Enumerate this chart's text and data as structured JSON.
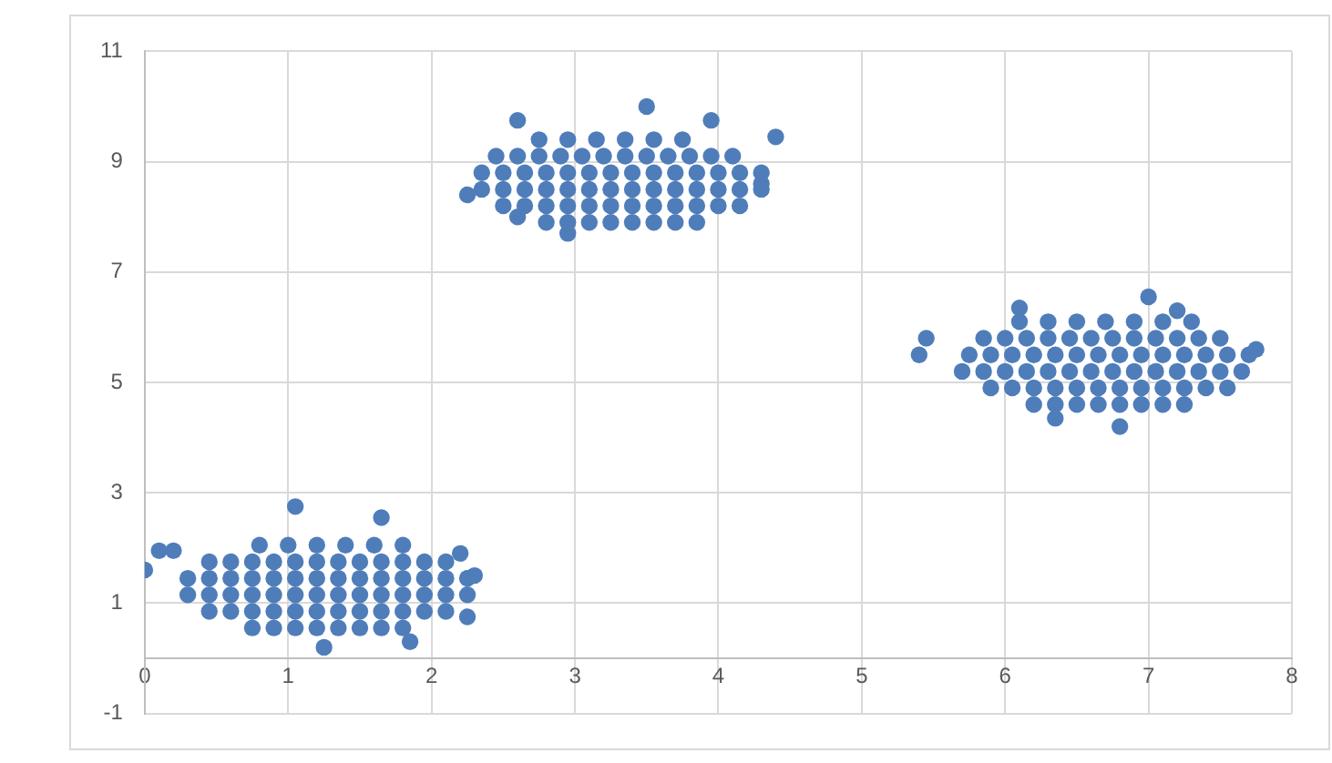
{
  "chart_data": {
    "type": "scatter",
    "marker": "circle",
    "grid": true,
    "legend": false,
    "xlim": [
      0,
      8
    ],
    "xticks": [
      0,
      1,
      2,
      3,
      4,
      5,
      6,
      7,
      8
    ],
    "ylim": [
      -1,
      11
    ],
    "yticks": [
      -1,
      1,
      3,
      5,
      7,
      9,
      11
    ],
    "series": [
      {
        "color": "#4f7dba",
        "x": [
          0.75,
          0.9,
          1.05,
          1.2,
          1.35,
          1.5,
          1.65,
          1.8,
          0.45,
          0.6,
          0.75,
          0.9,
          1.05,
          1.2,
          1.35,
          1.5,
          1.65,
          1.8,
          1.95,
          2.1,
          0.3,
          0.45,
          0.6,
          0.75,
          0.9,
          1.05,
          1.2,
          1.35,
          1.5,
          1.65,
          1.8,
          1.95,
          2.1,
          2.25,
          0.3,
          0.45,
          0.6,
          0.75,
          0.9,
          1.05,
          1.2,
          1.35,
          1.5,
          1.65,
          1.8,
          1.95,
          2.1,
          2.25,
          0.45,
          0.6,
          0.75,
          0.9,
          1.05,
          1.2,
          1.35,
          1.5,
          1.65,
          1.8,
          1.95,
          2.1,
          0.8,
          1.0,
          1.2,
          1.4,
          1.6,
          1.8,
          0,
          0.1,
          0.2,
          1.05,
          1.65,
          1.25,
          2.25,
          2.3,
          2.2,
          1.85
        ],
        "values": [
          0.55,
          0.55,
          0.55,
          0.55,
          0.55,
          0.55,
          0.55,
          0.55,
          0.85,
          0.85,
          0.85,
          0.85,
          0.85,
          0.85,
          0.85,
          0.85,
          0.85,
          0.85,
          0.85,
          0.85,
          1.15,
          1.15,
          1.15,
          1.15,
          1.15,
          1.15,
          1.15,
          1.15,
          1.15,
          1.15,
          1.15,
          1.15,
          1.15,
          1.15,
          1.45,
          1.45,
          1.45,
          1.45,
          1.45,
          1.45,
          1.45,
          1.45,
          1.45,
          1.45,
          1.45,
          1.45,
          1.45,
          1.45,
          1.75,
          1.75,
          1.75,
          1.75,
          1.75,
          1.75,
          1.75,
          1.75,
          1.75,
          1.75,
          1.75,
          1.75,
          2.05,
          2.05,
          2.05,
          2.05,
          2.05,
          2.05,
          1.6,
          1.95,
          1.95,
          2.75,
          2.55,
          0.2,
          0.75,
          1.5,
          1.9,
          0.3
        ]
      },
      {
        "color": "#4f7dba",
        "x": [
          2.8,
          2.95,
          3.1,
          3.25,
          3.4,
          3.55,
          3.7,
          3.85,
          2.5,
          2.65,
          2.8,
          2.95,
          3.1,
          3.25,
          3.4,
          3.55,
          3.7,
          3.85,
          4.0,
          4.15,
          2.35,
          2.5,
          2.65,
          2.8,
          2.95,
          3.1,
          3.25,
          3.4,
          3.55,
          3.7,
          3.85,
          4.0,
          4.15,
          4.3,
          2.35,
          2.5,
          2.65,
          2.8,
          2.95,
          3.1,
          3.25,
          3.4,
          3.55,
          3.7,
          3.85,
          4.0,
          4.15,
          4.3,
          2.45,
          2.6,
          2.75,
          2.9,
          3.05,
          3.2,
          3.35,
          3.5,
          3.65,
          3.8,
          3.95,
          4.1,
          2.75,
          2.95,
          3.15,
          3.35,
          3.55,
          3.75,
          2.25,
          2.6,
          3.5,
          4.4,
          4.3,
          2.6,
          3.95,
          2.95
        ],
        "values": [
          7.9,
          7.9,
          7.9,
          7.9,
          7.9,
          7.9,
          7.9,
          7.9,
          8.2,
          8.2,
          8.2,
          8.2,
          8.2,
          8.2,
          8.2,
          8.2,
          8.2,
          8.2,
          8.2,
          8.2,
          8.5,
          8.5,
          8.5,
          8.5,
          8.5,
          8.5,
          8.5,
          8.5,
          8.5,
          8.5,
          8.5,
          8.5,
          8.5,
          8.5,
          8.8,
          8.8,
          8.8,
          8.8,
          8.8,
          8.8,
          8.8,
          8.8,
          8.8,
          8.8,
          8.8,
          8.8,
          8.8,
          8.8,
          9.1,
          9.1,
          9.1,
          9.1,
          9.1,
          9.1,
          9.1,
          9.1,
          9.1,
          9.1,
          9.1,
          9.1,
          9.4,
          9.4,
          9.4,
          9.4,
          9.4,
          9.4,
          8.4,
          9.75,
          10.0,
          9.45,
          8.6,
          8.0,
          9.75,
          7.7
        ]
      },
      {
        "color": "#4f7dba",
        "x": [
          6.2,
          6.35,
          6.5,
          6.65,
          6.8,
          6.95,
          7.1,
          7.25,
          5.9,
          6.05,
          6.2,
          6.35,
          6.5,
          6.65,
          6.8,
          6.95,
          7.1,
          7.25,
          7.4,
          7.55,
          5.7,
          5.85,
          6.0,
          6.15,
          6.3,
          6.45,
          6.6,
          6.75,
          6.9,
          7.05,
          7.2,
          7.35,
          7.5,
          7.65,
          5.75,
          5.9,
          6.05,
          6.2,
          6.35,
          6.5,
          6.65,
          6.8,
          6.95,
          7.1,
          7.25,
          7.4,
          7.55,
          7.7,
          5.85,
          6.0,
          6.15,
          6.3,
          6.45,
          6.6,
          6.75,
          6.9,
          7.05,
          7.2,
          7.35,
          7.5,
          6.1,
          6.3,
          6.5,
          6.7,
          6.9,
          7.1,
          7.3,
          5.4,
          5.45,
          6.35,
          6.8,
          7.0,
          7.75,
          6.1,
          7.2
        ],
        "values": [
          4.6,
          4.6,
          4.6,
          4.6,
          4.6,
          4.6,
          4.6,
          4.6,
          4.9,
          4.9,
          4.9,
          4.9,
          4.9,
          4.9,
          4.9,
          4.9,
          4.9,
          4.9,
          4.9,
          4.9,
          5.2,
          5.2,
          5.2,
          5.2,
          5.2,
          5.2,
          5.2,
          5.2,
          5.2,
          5.2,
          5.2,
          5.2,
          5.2,
          5.2,
          5.5,
          5.5,
          5.5,
          5.5,
          5.5,
          5.5,
          5.5,
          5.5,
          5.5,
          5.5,
          5.5,
          5.5,
          5.5,
          5.5,
          5.8,
          5.8,
          5.8,
          5.8,
          5.8,
          5.8,
          5.8,
          5.8,
          5.8,
          5.8,
          5.8,
          5.8,
          6.1,
          6.1,
          6.1,
          6.1,
          6.1,
          6.1,
          6.1,
          5.5,
          5.8,
          4.35,
          4.2,
          6.55,
          5.6,
          6.35,
          6.3
        ]
      }
    ]
  }
}
